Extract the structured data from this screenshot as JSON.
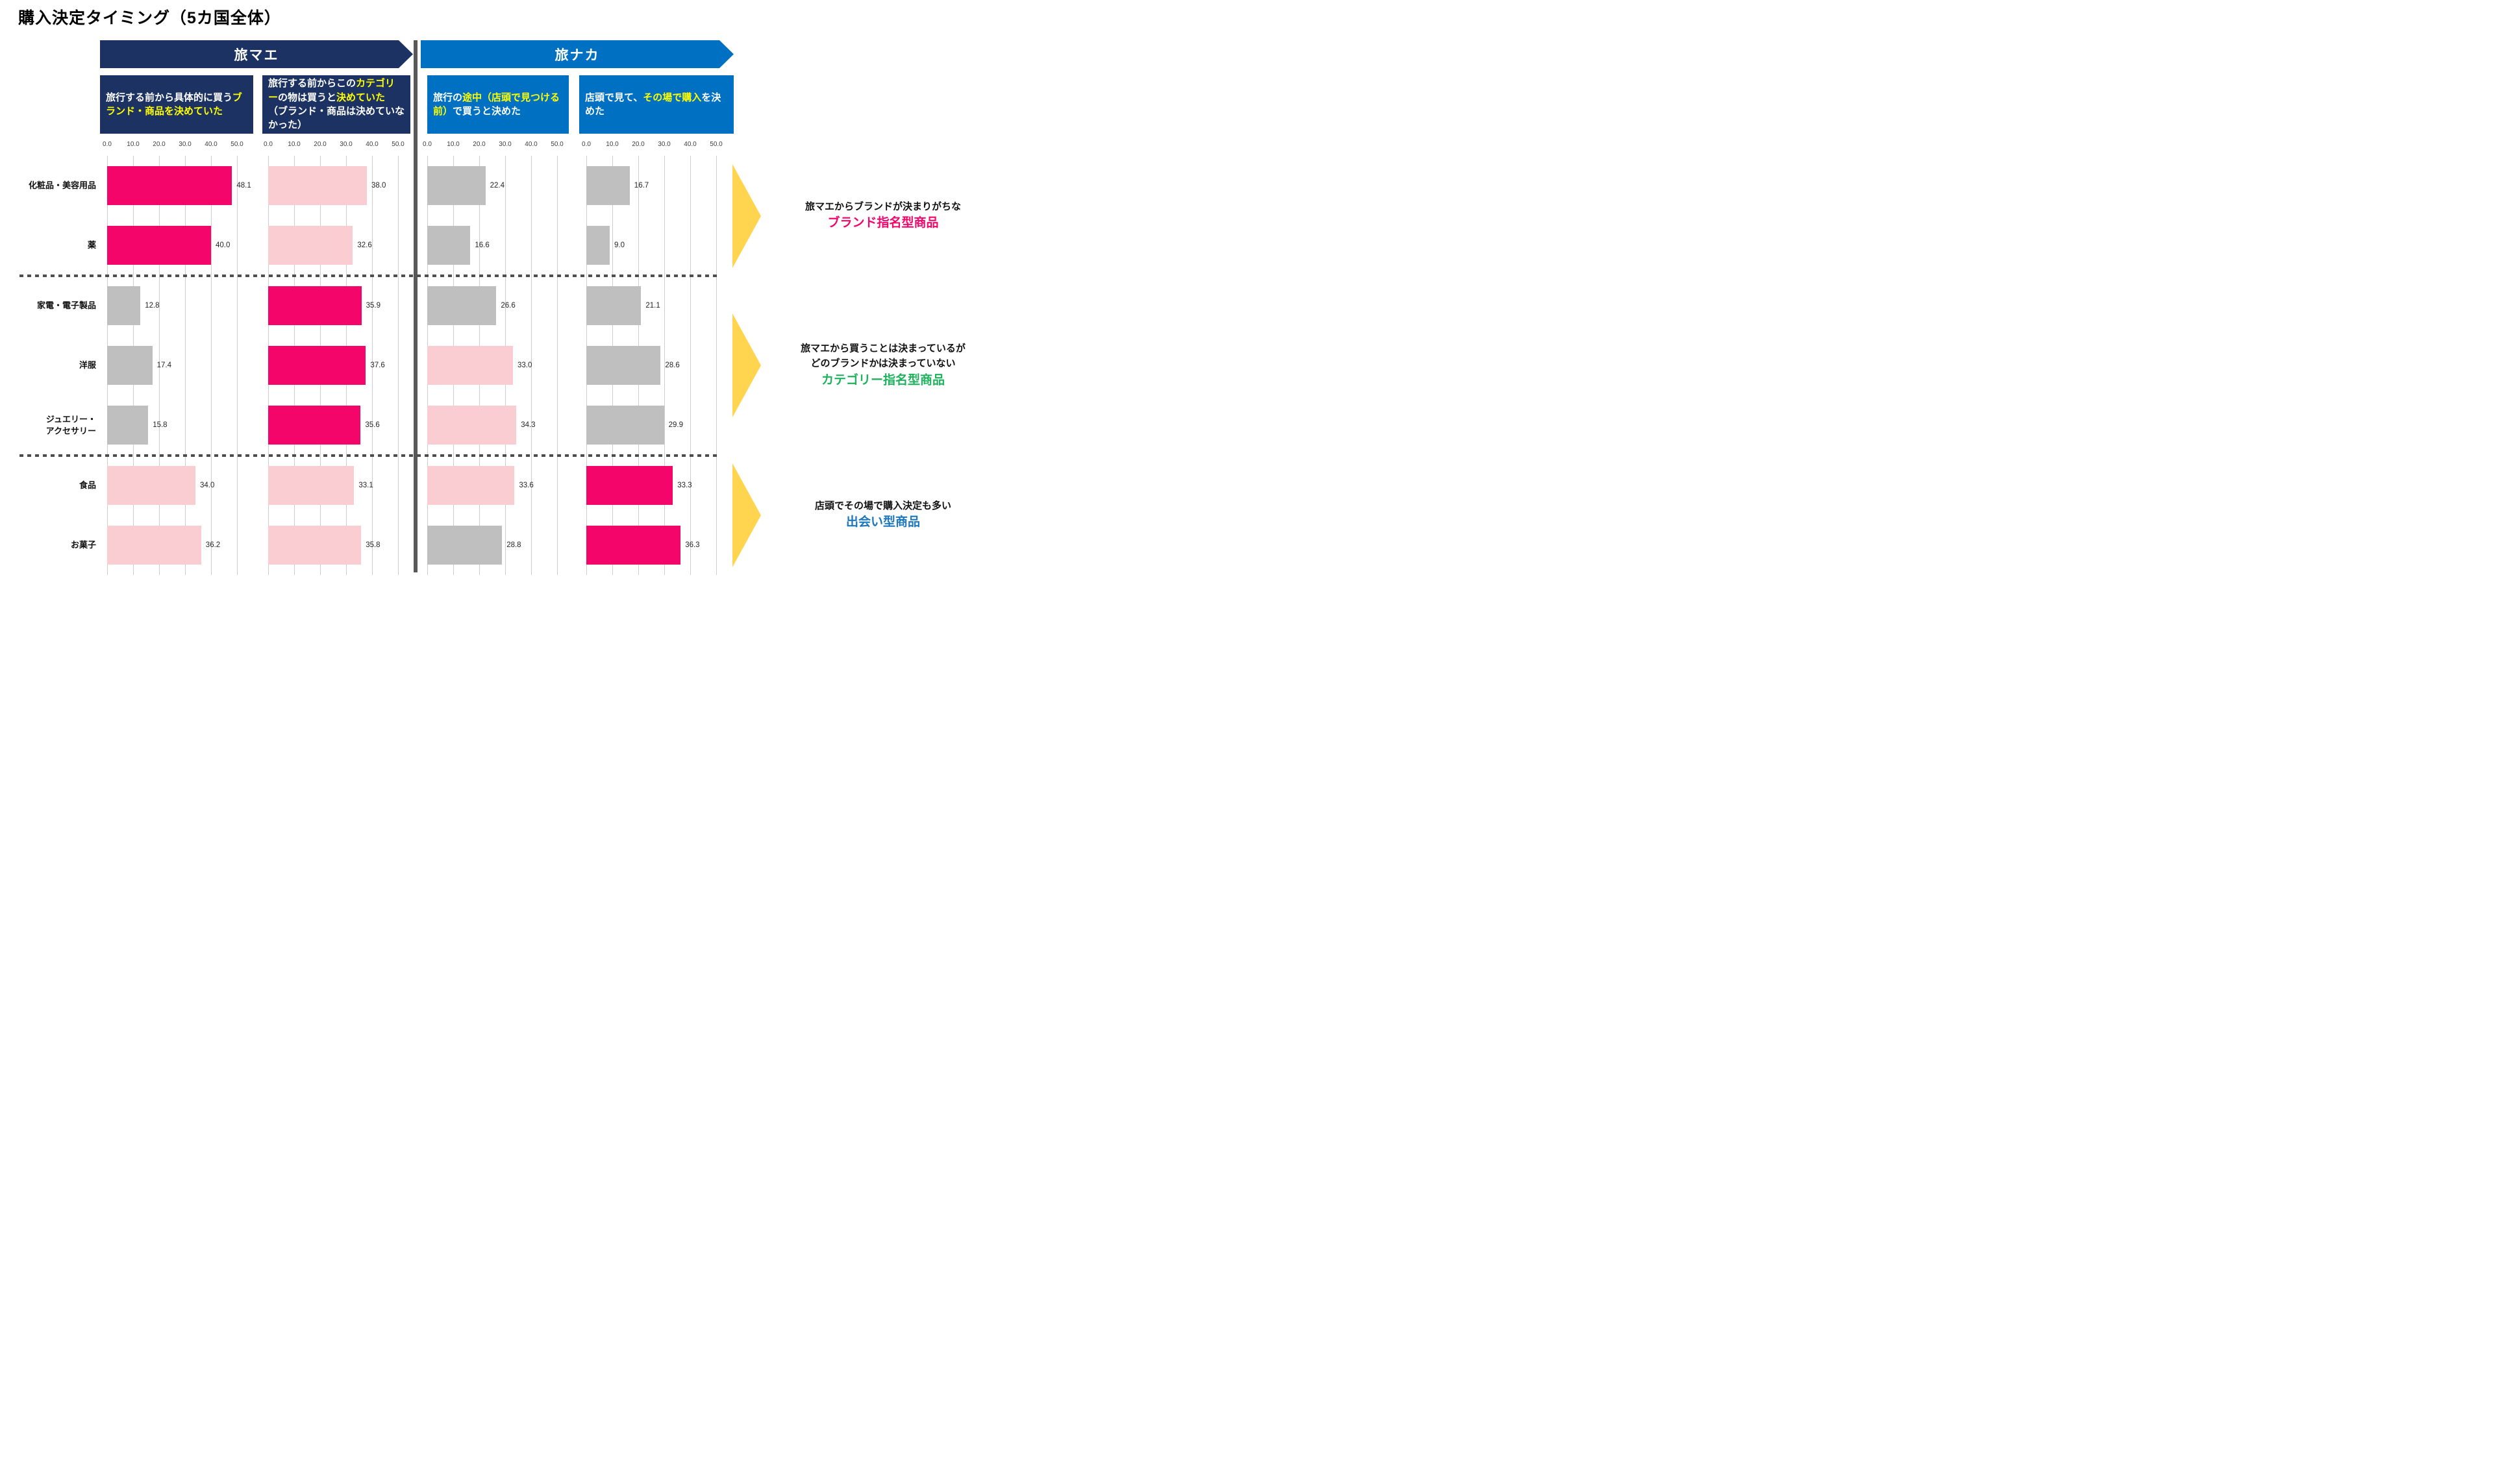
{
  "title": "購入決定タイミング（5カ国全体）",
  "sections": {
    "tabimae": {
      "label": "旅マエ"
    },
    "tabinaka": {
      "label": "旅ナカ"
    }
  },
  "column_headers": [
    {
      "section": "tabimae",
      "segments": [
        {
          "text": "旅行する前から具体的に買う",
          "highlight": false
        },
        {
          "text": "ブランド・商品を決めていた",
          "highlight": true
        }
      ]
    },
    {
      "section": "tabimae",
      "segments": [
        {
          "text": "旅行する前からこの",
          "highlight": false
        },
        {
          "text": "カテゴリー",
          "highlight": true
        },
        {
          "text": "の物は買うと",
          "highlight": false
        },
        {
          "text": "決めていた",
          "highlight": true
        },
        {
          "text": "（ブランド・商品は決めていなかった）",
          "highlight": false
        }
      ]
    },
    {
      "section": "tabinaka",
      "segments": [
        {
          "text": "旅行の",
          "highlight": false
        },
        {
          "text": "途中（店頭で見つける前）",
          "highlight": true
        },
        {
          "text": "で買うと決めた",
          "highlight": false
        }
      ]
    },
    {
      "section": "tabinaka",
      "segments": [
        {
          "text": "店頭で見て、",
          "highlight": false
        },
        {
          "text": "その場で購入",
          "highlight": true
        },
        {
          "text": "を決めた",
          "highlight": false
        }
      ]
    }
  ],
  "annotations": [
    {
      "lines": [
        "旅マエからブランドが決まりがちな"
      ],
      "tagline": "ブランド指名型商品",
      "tagline_color": "#F4056A"
    },
    {
      "lines": [
        "旅マエから買うことは決まっているが",
        "どのブランドかは決まっていない"
      ],
      "tagline": "カテゴリー指名型商品",
      "tagline_color": "#1DB35C"
    },
    {
      "lines": [
        "店頭でその場で購入決定も多い"
      ],
      "tagline": "出会い型商品",
      "tagline_color": "#1B78BE"
    }
  ],
  "chart_data": {
    "type": "bar",
    "orientation": "horizontal",
    "title": "購入決定タイミング（5カ国全体）",
    "xlim": [
      0,
      55
    ],
    "x_ticks": [
      0,
      10,
      20,
      30,
      40,
      50
    ],
    "x_tick_labels": [
      "0.0",
      "10.0",
      "20.0",
      "30.0",
      "40.0",
      "50.0"
    ],
    "grid": true,
    "value_label_format": "one-decimal",
    "categories": [
      "化粧品・美容用品",
      "薬",
      "家電・電子製品",
      "洋服",
      "ジュエリー・アクセサリー",
      "食品",
      "お菓子"
    ],
    "category_lines": [
      [
        "化粧品・美容用品"
      ],
      [
        "薬"
      ],
      [
        "家電・電子製品"
      ],
      [
        "洋服"
      ],
      [
        "ジュエリー・",
        "アクセサリー"
      ],
      [
        "食品"
      ],
      [
        "お菓子"
      ]
    ],
    "row_groups": [
      {
        "name": "ブランド指名型商品",
        "rows": [
          0,
          1
        ]
      },
      {
        "name": "カテゴリー指名型商品",
        "rows": [
          2,
          3,
          4
        ]
      },
      {
        "name": "出会い型商品",
        "rows": [
          5,
          6
        ]
      }
    ],
    "bar_colors": {
      "hot": "#F4056A",
      "pale": "#FACDD3",
      "gray": "#BFBFBF"
    },
    "series": [
      {
        "name": "旅行する前から具体的に買うブランド・商品を決めていた",
        "values": [
          48.1,
          40.0,
          12.8,
          17.4,
          15.8,
          34.0,
          36.2
        ],
        "bar_styles": [
          "hot",
          "hot",
          "gray",
          "gray",
          "gray",
          "pale",
          "pale"
        ]
      },
      {
        "name": "旅行する前からこのカテゴリーの物は買うと決めていた（ブランド・商品は決めていなかった）",
        "values": [
          38.0,
          32.6,
          35.9,
          37.6,
          35.6,
          33.1,
          35.8
        ],
        "bar_styles": [
          "pale",
          "pale",
          "hot",
          "hot",
          "hot",
          "pale",
          "pale"
        ]
      },
      {
        "name": "旅行の途中（店頭で見つける前）で買うと決めた",
        "values": [
          22.4,
          16.6,
          26.6,
          33.0,
          34.3,
          33.6,
          28.8
        ],
        "bar_styles": [
          "gray",
          "gray",
          "gray",
          "pale",
          "pale",
          "pale",
          "gray"
        ]
      },
      {
        "name": "店頭で見て、その場で購入を決めた",
        "values": [
          16.7,
          9.0,
          21.1,
          28.6,
          29.9,
          33.3,
          36.3
        ],
        "bar_styles": [
          "gray",
          "gray",
          "gray",
          "gray",
          "gray",
          "hot",
          "hot"
        ]
      }
    ]
  },
  "colors": {
    "banner_navy": "#1C3263",
    "banner_blue": "#0070C2",
    "header_highlight": "#FFFF00",
    "group_arrow": "#FFD44F",
    "divider": "#595959"
  }
}
